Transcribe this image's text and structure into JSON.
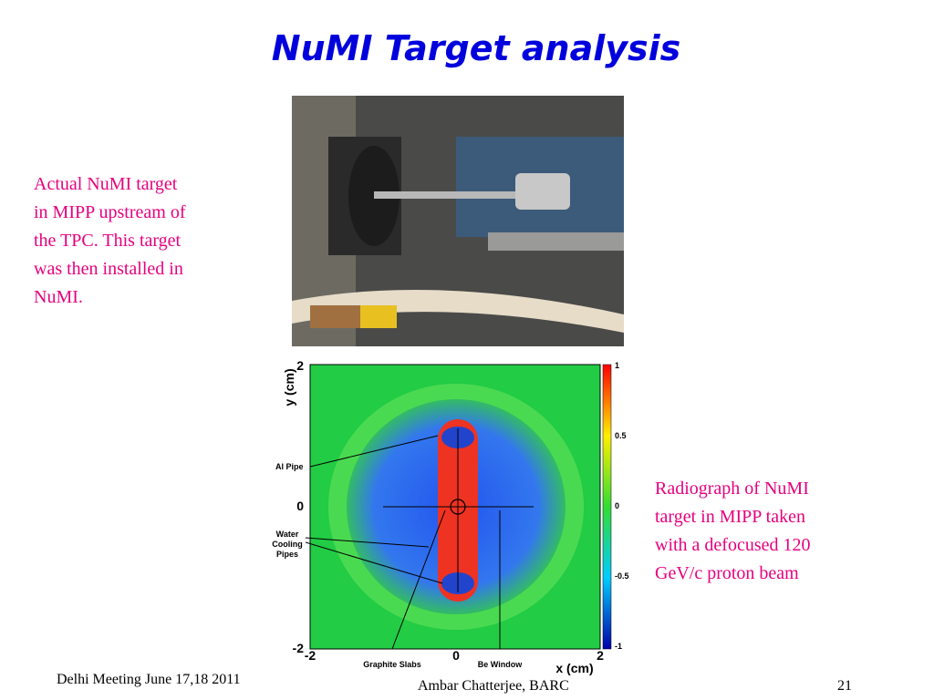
{
  "header": {
    "title": "NuMI Target analysis"
  },
  "captions": {
    "left": [
      "Actual NuMI target",
      "in MIPP upstream of",
      "the TPC. This target",
      "was then installed in",
      "NuMI."
    ],
    "right": [
      "Radiograph of NuMI",
      "target in MIPP taken",
      "with a defocused 120",
      "GeV/c proton beam"
    ]
  },
  "figure": {
    "y_axis_label": "y (cm)",
    "x_axis_label": "x (cm)",
    "y_ticks": [
      2,
      0,
      -2
    ],
    "x_ticks": [
      -2,
      0,
      2
    ],
    "colorbar_ticks": [
      1,
      0.5,
      0,
      -0.5,
      -1
    ],
    "annotations": [
      "Al Pipe",
      "Water",
      "Cooling",
      "Pipes",
      "Graphite Slabs",
      "Be Window"
    ]
  },
  "footer": {
    "left": "Delhi Meeting June 17,18 2011",
    "center": "Ambar Chatterjee, BARC",
    "page": 21
  }
}
